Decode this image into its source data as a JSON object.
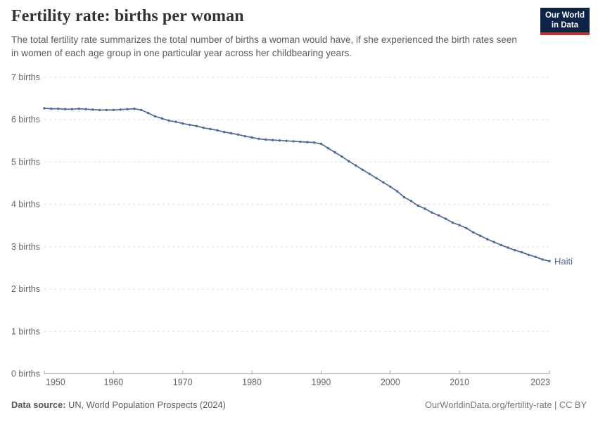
{
  "header": {
    "title": "Fertility rate: births per woman",
    "subtitle": "The total fertility rate summarizes the total number of births a woman would have, if she experienced the birth rates seen in women of each age group in one particular year across her childbearing years.",
    "logo": {
      "line1": "Our World",
      "line2": "in Data",
      "bg_color": "#0d2347",
      "accent_color": "#be352c"
    }
  },
  "chart_data": {
    "type": "line",
    "title": "Fertility rate: births per woman",
    "xlabel": "",
    "ylabel": "",
    "x_start": 1950,
    "x_end": 2023,
    "ylim": [
      0,
      7
    ],
    "grid": "horizontal-dashed",
    "legend_position": "end-of-line",
    "xticks": [
      1950,
      1960,
      1970,
      1980,
      1990,
      2000,
      2010,
      2023
    ],
    "ytick_labels": [
      "0 births",
      "1 births",
      "2 births",
      "3 births",
      "4 births",
      "5 births",
      "6 births",
      "7 births"
    ],
    "series": [
      {
        "name": "Haiti",
        "color": "#4c6a9c",
        "values": [
          6.27,
          6.26,
          6.26,
          6.25,
          6.25,
          6.26,
          6.25,
          6.24,
          6.23,
          6.23,
          6.23,
          6.24,
          6.25,
          6.26,
          6.23,
          6.16,
          6.08,
          6.03,
          5.98,
          5.95,
          5.91,
          5.88,
          5.85,
          5.81,
          5.78,
          5.75,
          5.71,
          5.68,
          5.65,
          5.61,
          5.58,
          5.55,
          5.53,
          5.52,
          5.51,
          5.5,
          5.49,
          5.48,
          5.47,
          5.46,
          5.43,
          5.33,
          5.23,
          5.13,
          5.02,
          4.92,
          4.82,
          4.72,
          4.62,
          4.52,
          4.42,
          4.31,
          4.17,
          4.08,
          3.97,
          3.9,
          3.81,
          3.74,
          3.66,
          3.57,
          3.51,
          3.44,
          3.34,
          3.26,
          3.18,
          3.11,
          3.04,
          2.98,
          2.92,
          2.87,
          2.81,
          2.76,
          2.7,
          2.66
        ]
      }
    ]
  },
  "footer": {
    "source_label": "Data source:",
    "source_text": " UN, World Population Prospects (2024)",
    "link_text": "OurWorldinData.org/fertility-rate | CC BY"
  },
  "colors": {
    "line": "#4c6a9c",
    "gridline": "#dcdcdc",
    "axis": "#a1a1a1",
    "tick_label": "#666666"
  }
}
